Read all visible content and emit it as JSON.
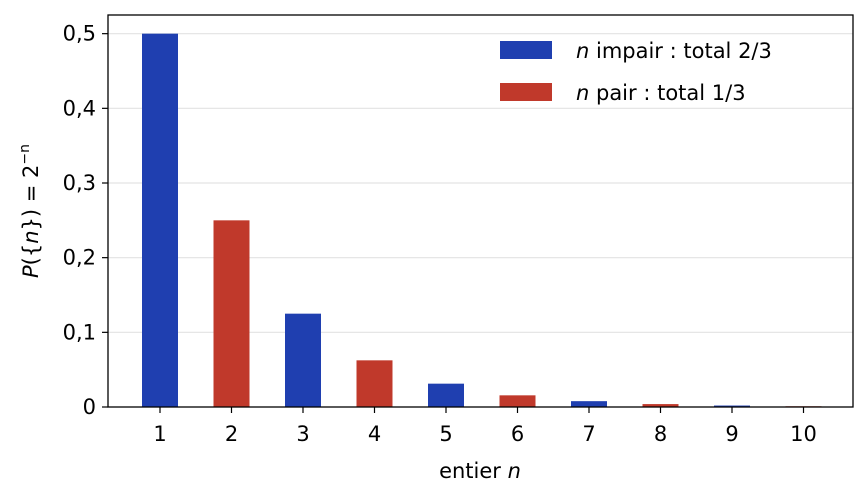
{
  "chart_data": {
    "type": "bar",
    "categories": [
      "1",
      "2",
      "3",
      "4",
      "5",
      "6",
      "7",
      "8",
      "9",
      "10"
    ],
    "values": [
      0.5,
      0.25,
      0.125,
      0.0625,
      0.03125,
      0.015625,
      0.0078125,
      0.00390625,
      0.001953125,
      0.0009765625
    ],
    "series": [
      {
        "name": "n impair : total 2/3",
        "name_var": "n",
        "name_rest": " impair : total 2/3",
        "color": "#1f3fb0",
        "parity": "odd"
      },
      {
        "name": "n pair : total 1/3",
        "name_var": "n",
        "name_rest": " pair : total 1/3",
        "color": "#c0392b",
        "parity": "even"
      }
    ],
    "xlabel": "entier n",
    "xlabel_text": "entier ",
    "xlabel_var": "n",
    "ylabel": "P({n}) = 2^-n",
    "ylabel_parts": {
      "p": "P",
      "open": "({",
      "n": "n",
      "close": "}) = 2",
      "exp": "−n"
    },
    "ylim": [
      0,
      0.525
    ],
    "yticks": [
      0,
      0.1,
      0.2,
      0.3,
      0.4,
      0.5
    ],
    "ytick_labels": [
      "0",
      "0,1",
      "0,2",
      "0,3",
      "0,4",
      "0,5"
    ],
    "grid": "horizontal",
    "legend_position": "top-right"
  }
}
